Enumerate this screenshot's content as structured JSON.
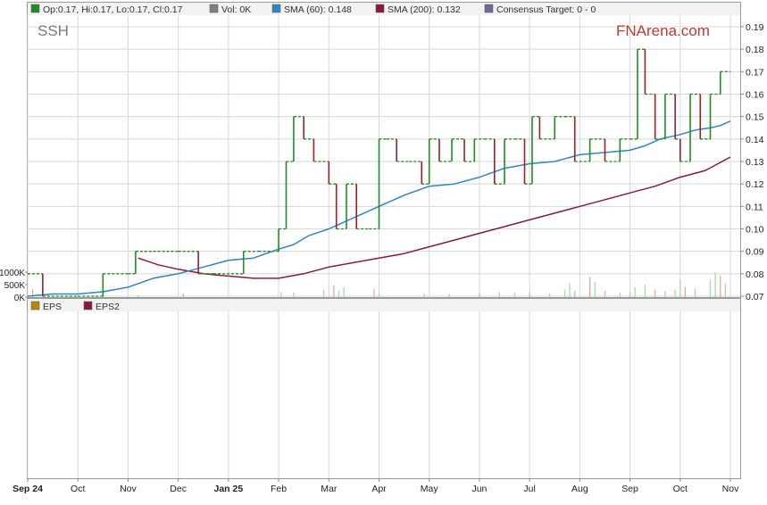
{
  "header": {
    "ohlc": "Op:0.17, Hi:0.17, Lo:0.17, Cl:0.17",
    "vol": "Vol: 0K",
    "sma60": "SMA (60): 0.148",
    "sma200": "SMA (200): 0.132",
    "consensus": "Consensus Target: 0 - 0"
  },
  "ticker": "SSH",
  "brand": "FNArena.com",
  "lower_legend": {
    "eps": "EPS",
    "eps2": "EPS2"
  },
  "colors": {
    "up": "#228B22",
    "down": "#A01E28",
    "sma60": "#2E86C1",
    "sma200": "#8B1A3A",
    "grid": "#d8d8d8",
    "brand": "#C0392B",
    "eps_swatch": "#B8860B",
    "eps2_swatch": "#8B1A3A",
    "vol_swatch": "#808080",
    "consensus_swatch": "#6B6B9E"
  },
  "chart_data": {
    "type": "line",
    "x_ticks": [
      "Sep 24",
      "Oct",
      "Nov",
      "Dec",
      "Jan 25",
      "Feb",
      "Mar",
      "Apr",
      "May",
      "Jun",
      "Jul",
      "Aug",
      "Sep",
      "Oct",
      "Nov"
    ],
    "x_tick_pos": [
      0,
      1,
      2,
      3,
      4,
      5,
      6,
      7,
      8,
      9,
      10,
      11,
      12,
      13,
      14
    ],
    "y_ticks": [
      "0.19",
      "0.18",
      "0.17",
      "0.16",
      "0.15",
      "0.14",
      "0.13",
      "0.12",
      "0.11",
      "0.10",
      "0.09",
      "0.08",
      "0.07"
    ],
    "ylim": [
      0.07,
      0.19
    ],
    "volume_ticks": [
      "1000K",
      "500K",
      "0K"
    ],
    "price": {
      "x": [
        0.0,
        0.3,
        1.0,
        1.5,
        2.0,
        2.15,
        2.5,
        3.0,
        3.4,
        3.7,
        4.3,
        4.6,
        5.0,
        5.15,
        5.3,
        5.5,
        5.7,
        6.0,
        6.15,
        6.35,
        6.55,
        6.8,
        7.0,
        7.15,
        7.35,
        7.6,
        7.85,
        8.0,
        8.2,
        8.45,
        8.7,
        8.9,
        9.1,
        9.3,
        9.5,
        9.7,
        9.9,
        10.05,
        10.2,
        10.5,
        10.7,
        10.9,
        11.2,
        11.5,
        11.8,
        12.0,
        12.15,
        12.3,
        12.5,
        12.7,
        12.9,
        13.0,
        13.2,
        13.4,
        13.6,
        13.8,
        14.0
      ],
      "y": [
        0.08,
        0.07,
        0.07,
        0.08,
        0.08,
        0.09,
        0.09,
        0.09,
        0.08,
        0.08,
        0.09,
        0.09,
        0.1,
        0.13,
        0.15,
        0.14,
        0.13,
        0.12,
        0.1,
        0.12,
        0.1,
        0.1,
        0.14,
        0.14,
        0.13,
        0.13,
        0.12,
        0.14,
        0.13,
        0.14,
        0.13,
        0.14,
        0.14,
        0.12,
        0.14,
        0.14,
        0.12,
        0.15,
        0.14,
        0.15,
        0.15,
        0.13,
        0.14,
        0.13,
        0.14,
        0.14,
        0.18,
        0.16,
        0.14,
        0.16,
        0.14,
        0.13,
        0.16,
        0.14,
        0.16,
        0.17,
        0.17
      ]
    },
    "sma60": {
      "x": [
        0.0,
        0.5,
        1.0,
        1.5,
        2.0,
        2.5,
        3.0,
        3.5,
        4.0,
        4.5,
        5.0,
        5.3,
        5.6,
        6.0,
        6.3,
        6.6,
        7.0,
        7.5,
        8.0,
        8.5,
        9.0,
        9.5,
        10.0,
        10.5,
        11.0,
        11.5,
        12.0,
        12.3,
        12.6,
        13.0,
        13.3,
        13.6,
        13.8,
        14.0
      ],
      "y": [
        0.07,
        0.071,
        0.071,
        0.072,
        0.074,
        0.078,
        0.08,
        0.083,
        0.086,
        0.087,
        0.091,
        0.093,
        0.097,
        0.1,
        0.103,
        0.106,
        0.11,
        0.115,
        0.119,
        0.12,
        0.123,
        0.127,
        0.129,
        0.13,
        0.133,
        0.134,
        0.135,
        0.137,
        0.14,
        0.142,
        0.144,
        0.145,
        0.146,
        0.148
      ]
    },
    "sma200": {
      "x": [
        2.2,
        2.6,
        3.0,
        3.5,
        4.0,
        4.5,
        5.0,
        5.5,
        6.0,
        6.5,
        7.0,
        7.5,
        8.0,
        8.5,
        9.0,
        9.5,
        10.0,
        10.5,
        11.0,
        11.5,
        12.0,
        12.5,
        13.0,
        13.5,
        14.0
      ],
      "y": [
        0.087,
        0.084,
        0.082,
        0.08,
        0.079,
        0.078,
        0.078,
        0.08,
        0.083,
        0.085,
        0.087,
        0.089,
        0.092,
        0.095,
        0.098,
        0.101,
        0.104,
        0.107,
        0.11,
        0.113,
        0.116,
        0.119,
        0.123,
        0.126,
        0.132
      ]
    },
    "volume_bars": {
      "x": [
        0.1,
        1.5,
        2.2,
        3.1,
        5.05,
        5.3,
        5.9,
        6.1,
        6.2,
        6.3,
        6.9,
        7.0,
        7.9,
        8.4,
        9.0,
        9.4,
        9.7,
        10.0,
        10.4,
        10.7,
        10.8,
        10.9,
        11.2,
        11.3,
        11.5,
        11.8,
        12.0,
        12.1,
        12.3,
        12.5,
        12.7,
        12.9,
        13.0,
        13.1,
        13.3,
        13.6,
        13.7,
        13.8,
        13.9
      ],
      "v": [
        300,
        120,
        80,
        150,
        200,
        180,
        300,
        480,
        250,
        380,
        320,
        150,
        150,
        120,
        160,
        200,
        170,
        200,
        150,
        300,
        550,
        250,
        800,
        600,
        250,
        170,
        200,
        400,
        500,
        300,
        250,
        300,
        700,
        400,
        350,
        700,
        1000,
        850,
        550
      ],
      "up": [
        false,
        true,
        true,
        false,
        true,
        true,
        true,
        false,
        true,
        true,
        false,
        true,
        true,
        true,
        false,
        true,
        true,
        false,
        true,
        true,
        true,
        false,
        false,
        true,
        true,
        true,
        true,
        true,
        true,
        false,
        true,
        true,
        true,
        false,
        true,
        true,
        true,
        false,
        true
      ]
    },
    "volume_max": 1000
  }
}
